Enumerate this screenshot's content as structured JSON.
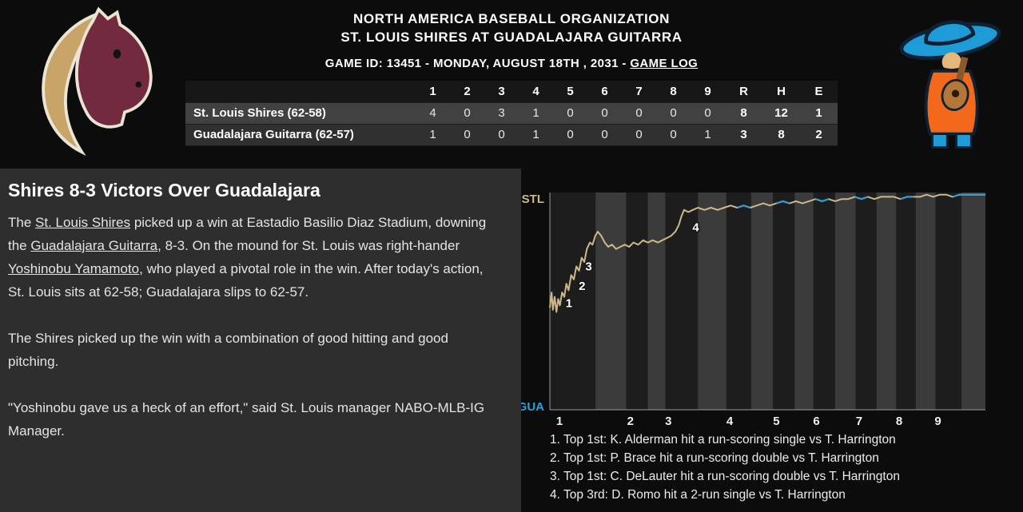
{
  "header": {
    "league": "NORTH AMERICA BASEBALL ORGANIZATION",
    "matchup": "ST. LOUIS SHIRES AT GUADALAJARA GUITARRA",
    "game_info_prefix": "GAME ID: 13451 - MONDAY, AUGUST 18TH , 2031 - ",
    "game_log_link": "GAME LOG"
  },
  "colors": {
    "stl_accent": "#cdb888",
    "gua_accent": "#2da0dc",
    "shires_maroon": "#732a3f",
    "shires_tan": "#c9a468",
    "guitarra_blue": "#1e9cd7",
    "guitarra_orange": "#f2691c"
  },
  "linescore": {
    "columns": [
      "1",
      "2",
      "3",
      "4",
      "5",
      "6",
      "7",
      "8",
      "9",
      "R",
      "H",
      "E"
    ],
    "rows": [
      {
        "team": "St. Louis Shires (62-58)",
        "cells": [
          "4",
          "0",
          "3",
          "1",
          "0",
          "0",
          "0",
          "0",
          "0",
          "8",
          "12",
          "1"
        ]
      },
      {
        "team": "Guadalajara Guitarra (62-57)",
        "cells": [
          "1",
          "0",
          "0",
          "1",
          "0",
          "0",
          "0",
          "0",
          "1",
          "3",
          "8",
          "2"
        ]
      }
    ]
  },
  "article": {
    "headline": "Shires 8-3 Victors Over Guadalajara",
    "p1": {
      "t0": "The ",
      "link1": "St. Louis Shires",
      "t1": " picked up a win at Eastadio Basilio Diaz Stadium, downing the ",
      "link2": "Guadalajara Guitarra",
      "t2": ", 8-3. On the mound for St. Louis was right-hander ",
      "link3": "Yoshinobu Yamamoto",
      "t3": ", who played a pivotal role in the win. After today's action, St. Louis sits at 62-58; Guadalajara slips to 62-57."
    },
    "p2": "The Shires picked up the win with a combination of good hitting and good pitching.",
    "p3": "\"Yoshinobu gave us a heck of an effort,\" said St. Louis manager NABO-MLB-IG Manager."
  },
  "chart_data": {
    "type": "line",
    "title": "Win probability by plate appearance",
    "ylabel_top": "STL",
    "ylabel_bottom": "GUA",
    "colors": {
      "stl": "#cdb888",
      "gua": "#2da0dc",
      "plot_bg": "#1d1d1d",
      "band": "#3b3b3b",
      "axis": "#9a9a9a"
    },
    "x_ticks": [
      {
        "label": "1",
        "x": 0.022
      },
      {
        "label": "2",
        "x": 0.185
      },
      {
        "label": "3",
        "x": 0.272
      },
      {
        "label": "4",
        "x": 0.413
      },
      {
        "label": "5",
        "x": 0.52
      },
      {
        "label": "6",
        "x": 0.612
      },
      {
        "label": "7",
        "x": 0.71
      },
      {
        "label": "8",
        "x": 0.802
      },
      {
        "label": "9",
        "x": 0.891
      }
    ],
    "bands": [
      {
        "from": 0.105,
        "to": 0.175
      },
      {
        "from": 0.225,
        "to": 0.265
      },
      {
        "from": 0.34,
        "to": 0.405
      },
      {
        "from": 0.462,
        "to": 0.512
      },
      {
        "from": 0.562,
        "to": 0.605
      },
      {
        "from": 0.655,
        "to": 0.702
      },
      {
        "from": 0.75,
        "to": 0.795
      },
      {
        "from": 0.84,
        "to": 0.885
      },
      {
        "from": 0.945,
        "to": 1.0
      }
    ],
    "points": [
      [
        0.0,
        47
      ],
      [
        0.004,
        54
      ],
      [
        0.007,
        46
      ],
      [
        0.011,
        52
      ],
      [
        0.015,
        45
      ],
      [
        0.019,
        51
      ],
      [
        0.023,
        48
      ],
      [
        0.028,
        54
      ],
      [
        0.033,
        52
      ],
      [
        0.038,
        58
      ],
      [
        0.043,
        55
      ],
      [
        0.049,
        62
      ],
      [
        0.055,
        60
      ],
      [
        0.061,
        66
      ],
      [
        0.067,
        64
      ],
      [
        0.073,
        70
      ],
      [
        0.079,
        68
      ],
      [
        0.085,
        74
      ],
      [
        0.092,
        77
      ],
      [
        0.098,
        76
      ],
      [
        0.104,
        80
      ],
      [
        0.11,
        82
      ],
      [
        0.118,
        80
      ],
      [
        0.126,
        77
      ],
      [
        0.134,
        75
      ],
      [
        0.143,
        76
      ],
      [
        0.152,
        74
      ],
      [
        0.162,
        75
      ],
      [
        0.172,
        76
      ],
      [
        0.182,
        75
      ],
      [
        0.192,
        77
      ],
      [
        0.203,
        76
      ],
      [
        0.214,
        78
      ],
      [
        0.225,
        77
      ],
      [
        0.236,
        78
      ],
      [
        0.248,
        77
      ],
      [
        0.258,
        78
      ],
      [
        0.268,
        79
      ],
      [
        0.278,
        80
      ],
      [
        0.288,
        82
      ],
      [
        0.296,
        85
      ],
      [
        0.302,
        89
      ],
      [
        0.308,
        92
      ],
      [
        0.318,
        91
      ],
      [
        0.328,
        92
      ],
      [
        0.34,
        93
      ],
      [
        0.355,
        92
      ],
      [
        0.37,
        93
      ],
      [
        0.385,
        92
      ],
      [
        0.4,
        93
      ],
      [
        0.415,
        94
      ],
      [
        0.43,
        93
      ],
      [
        0.445,
        94
      ],
      [
        0.46,
        93
      ],
      [
        0.475,
        94
      ],
      [
        0.49,
        95
      ],
      [
        0.505,
        94
      ],
      [
        0.52,
        95
      ],
      [
        0.535,
        96
      ],
      [
        0.55,
        95
      ],
      [
        0.565,
        96
      ],
      [
        0.58,
        95
      ],
      [
        0.595,
        96
      ],
      [
        0.61,
        97
      ],
      [
        0.625,
        96
      ],
      [
        0.64,
        97
      ],
      [
        0.655,
        96
      ],
      [
        0.67,
        97
      ],
      [
        0.685,
        97
      ],
      [
        0.7,
        98
      ],
      [
        0.715,
        97
      ],
      [
        0.73,
        98
      ],
      [
        0.745,
        97
      ],
      [
        0.76,
        98
      ],
      [
        0.775,
        98
      ],
      [
        0.79,
        98
      ],
      [
        0.805,
        97
      ],
      [
        0.82,
        98
      ],
      [
        0.835,
        98
      ],
      [
        0.85,
        98
      ],
      [
        0.865,
        99
      ],
      [
        0.88,
        98
      ],
      [
        0.895,
        99
      ],
      [
        0.91,
        99
      ],
      [
        0.925,
        98
      ],
      [
        0.94,
        99
      ],
      [
        0.955,
        99
      ],
      [
        0.97,
        99
      ],
      [
        0.985,
        99
      ],
      [
        1.0,
        99
      ]
    ],
    "gua_ranges": [
      [
        0.43,
        0.465
      ],
      [
        0.52,
        0.555
      ],
      [
        0.61,
        0.645
      ],
      [
        0.7,
        0.735
      ],
      [
        0.805,
        0.84
      ],
      [
        0.925,
        1.0
      ]
    ],
    "annotations": [
      {
        "label": "1",
        "x": 0.044,
        "y": 49
      },
      {
        "label": "2",
        "x": 0.074,
        "y": 57
      },
      {
        "label": "3",
        "x": 0.089,
        "y": 66
      },
      {
        "label": "4",
        "x": 0.335,
        "y": 84
      }
    ]
  },
  "key_plays": [
    "1. Top 1st: K. Alderman hit a run-scoring single vs T. Harrington",
    "2. Top 1st: P. Brace hit a run-scoring double vs T. Harrington",
    "3. Top 1st: C. DeLauter hit a run-scoring double vs T. Harrington",
    "4. Top 3rd: D. Romo hit a 2-run single vs T. Harrington"
  ]
}
